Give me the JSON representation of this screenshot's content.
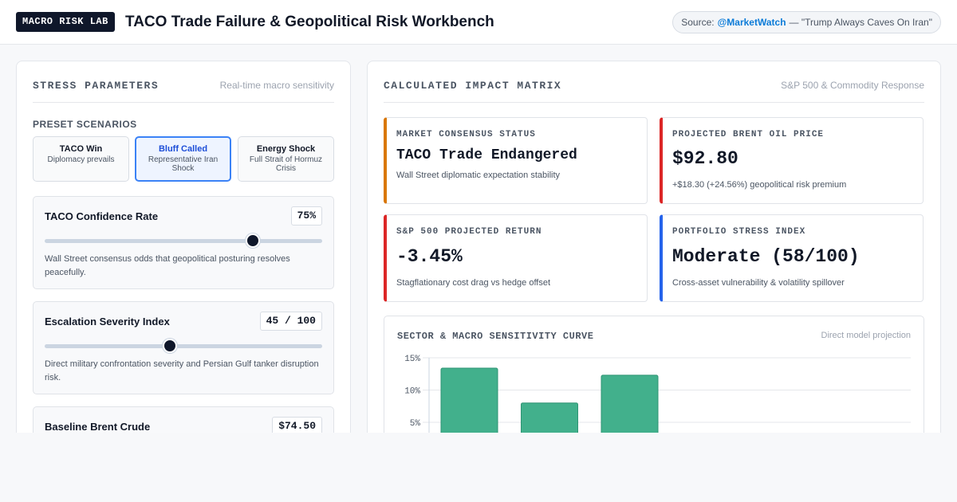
{
  "header": {
    "brand": "MACRO RISK LAB",
    "title": "TACO Trade Failure & Geopolitical Risk Workbench",
    "source_label": "Source:",
    "source_handle": "@MarketWatch",
    "source_quote": "— \"Trump Always Caves On Iran\""
  },
  "left_panel": {
    "title": "STRESS PARAMETERS",
    "subtitle": "Real-time macro sensitivity",
    "presets_label": "PRESET SCENARIOS",
    "presets": [
      {
        "name": "TACO Win",
        "desc": "Diplomacy prevails",
        "active": false
      },
      {
        "name": "Bluff Called",
        "desc": "Representative Iran Shock",
        "active": true
      },
      {
        "name": "Energy Shock",
        "desc": "Full Strait of Hormuz Crisis",
        "active": false
      }
    ],
    "controls": [
      {
        "label": "TACO Confidence Rate",
        "value": "75%",
        "level": 0.75,
        "help": "Wall Street consensus odds that geopolitical posturing resolves peacefully."
      },
      {
        "label": "Escalation Severity Index",
        "value": "45 / 100",
        "level": 0.45,
        "help": "Direct military confrontation severity and Persian Gulf tanker disruption risk."
      },
      {
        "label": "Baseline Brent Crude",
        "value": "$74.50"
      }
    ]
  },
  "right_panel": {
    "title": "CALCULATED IMPACT MATRIX",
    "subtitle": "S&P 500 & Commodity Response",
    "cards": [
      {
        "label": "MARKET CONSENSUS STATUS",
        "value": "TACO Trade Endangered",
        "note": "Wall Street diplomatic expectation stability",
        "accent": "#d97706"
      },
      {
        "label": "PROJECTED BRENT OIL PRICE",
        "value": "$92.80",
        "note": "+$18.30 (+24.56%) geopolitical risk premium",
        "accent": "#dc2626"
      },
      {
        "label": "S&P 500 PROJECTED RETURN",
        "value": "-3.45%",
        "note": "Stagflationary cost drag vs hedge offset",
        "accent": "#dc2626"
      },
      {
        "label": "PORTFOLIO STRESS INDEX",
        "value": "Moderate (58/100)",
        "note": "Cross-asset vulnerability & volatility spillover",
        "accent": "#2563eb"
      }
    ],
    "chart_title": "SECTOR & MACRO SENSITIVITY CURVE",
    "chart_subtitle": "Direct model projection"
  },
  "chart_data": {
    "type": "bar",
    "title": "SECTOR & MACRO SENSITIVITY CURVE",
    "subtitle": "Direct model projection",
    "yticks": [
      "15%",
      "10%",
      "5%"
    ],
    "ytick_values": [
      15,
      10,
      5
    ],
    "values": [
      13.4,
      8.0,
      12.3
    ],
    "ylim": [
      0,
      15
    ],
    "grid": true,
    "bar_color": "#42b08c",
    "bar_border": "#2e9473"
  },
  "colors": {
    "accent_blue": "#3b82f6",
    "link": "#0b7bd8",
    "slider_thumb": "#0f172a"
  }
}
